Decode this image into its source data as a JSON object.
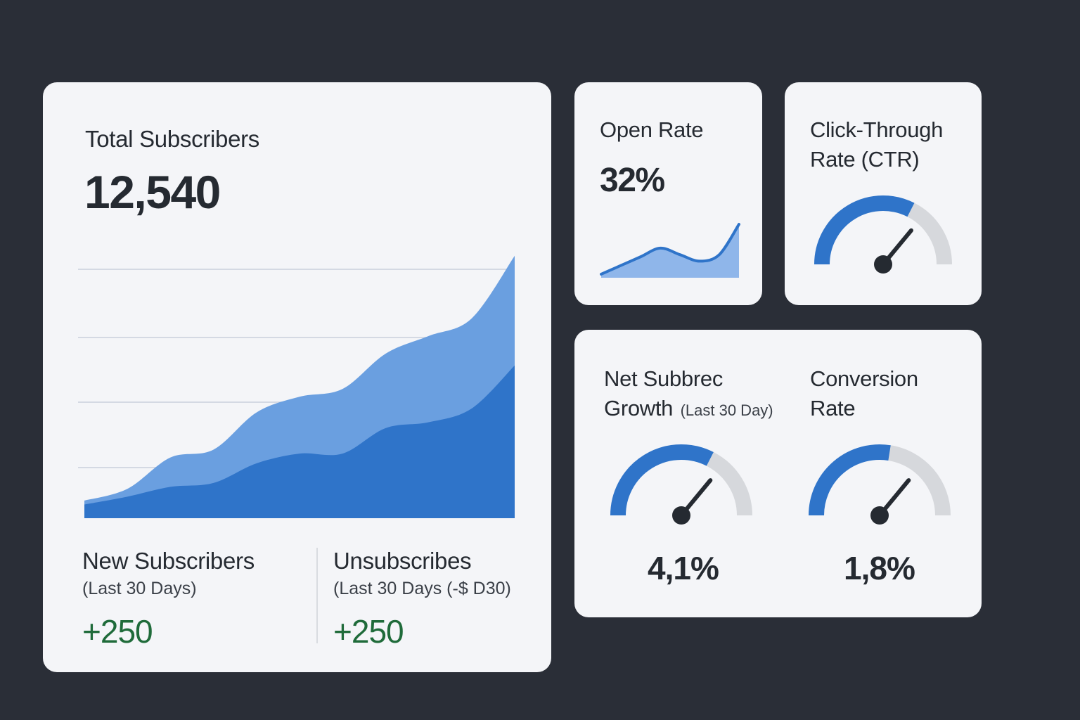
{
  "colors": {
    "background": "#2a2e37",
    "card": "#f4f5f8",
    "accent": "#2f74c9",
    "accent_light": "#6a9fe0",
    "gauge_track": "#d6d8dc",
    "positive": "#1f6b3a"
  },
  "total_subscribers": {
    "title": "Total Subscribers",
    "value": "12,540",
    "chart_data": {
      "type": "area",
      "title": "Total Subscribers",
      "x": [
        0,
        1,
        2,
        3,
        4,
        5,
        6,
        7,
        8,
        9,
        10
      ],
      "series": [
        {
          "name": "Total",
          "values": [
            4.5,
            7.5,
            15.5,
            17.5,
            27,
            31,
            33,
            42,
            46.5,
            51,
            67
          ]
        },
        {
          "name": "New",
          "values": [
            3.5,
            5.5,
            8,
            9,
            14,
            16.5,
            16.5,
            23,
            24.5,
            28,
            39
          ]
        }
      ],
      "ylim": [
        0,
        70
      ],
      "grid": true
    },
    "new_subscribers": {
      "label": "New Subscribers",
      "period": "(Last 30 Days)",
      "value": "+250"
    },
    "unsubscribes": {
      "label": "Unsubscribes",
      "period": "(Last 30 Days (-$ D30)",
      "value": "+250"
    }
  },
  "open_rate": {
    "title": "Open Rate",
    "value": "32%",
    "sparkline": {
      "type": "area",
      "values": [
        1,
        5,
        9,
        13,
        10,
        7,
        10,
        24
      ]
    }
  },
  "ctr": {
    "title_line1": "Click-Through",
    "title_line2": "Rate (CTR)",
    "gauge_fraction": 0.65
  },
  "net_growth": {
    "title_line1": "Net Subbrec",
    "title_line2": "Growth",
    "period": "(Last 30 Day)",
    "value": "4,1%",
    "gauge_fraction": 0.65
  },
  "conversion_rate": {
    "title_line1": "Conversion",
    "title_line2": "Rate",
    "value": "1,8%",
    "gauge_fraction": 0.55
  }
}
